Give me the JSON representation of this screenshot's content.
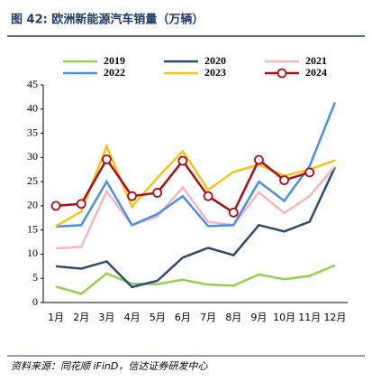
{
  "chart_data": {
    "type": "line",
    "title": "图 42: 欧洲新能源汽车销量（万辆）",
    "source": "资料来源：同花顺 iFinD，信达证券研发中心",
    "categories": [
      "1月",
      "2月",
      "3月",
      "4月",
      "5月",
      "6月",
      "7月",
      "8月",
      "9月",
      "10月",
      "11月",
      "12月"
    ],
    "ylim": [
      0,
      45
    ],
    "yticks": [
      0,
      5,
      10,
      15,
      20,
      25,
      30,
      35,
      40,
      45
    ],
    "series": [
      {
        "name": "2019",
        "color": "#92d050",
        "values": [
          3.3,
          1.8,
          6,
          3.9,
          3.8,
          4.7,
          3.7,
          3.5,
          5.8,
          4.8,
          5.5,
          7.7
        ]
      },
      {
        "name": "2020",
        "color": "#2e4a6e",
        "values": [
          7.5,
          7.0,
          8.5,
          3.2,
          4.5,
          9.3,
          11.3,
          9.8,
          16,
          14.7,
          16.7,
          28
        ]
      },
      {
        "name": "2021",
        "color": "#f4b6bc",
        "values": [
          11.2,
          11.5,
          23,
          16,
          17.8,
          23.8,
          16.7,
          16,
          22.8,
          18.5,
          22,
          28.2
        ]
      },
      {
        "name": "2022",
        "color": "#4a8fe7",
        "values": [
          15.7,
          16,
          25,
          16,
          18.3,
          22,
          15.8,
          16,
          25,
          21,
          28.2,
          41.4
        ]
      },
      {
        "name": "2023",
        "color": "#f5c21b",
        "values": [
          15.8,
          18.8,
          32.3,
          19.8,
          25.8,
          31.3,
          23.3,
          27,
          28.5,
          26.2,
          27.5,
          29.4
        ]
      },
      {
        "name": "2024",
        "color": "#a50f15",
        "markers": true,
        "values": [
          20,
          20.4,
          29.6,
          22,
          22.7,
          29.3,
          22,
          18.6,
          29.5,
          25.3,
          26.9,
          null
        ]
      }
    ]
  }
}
